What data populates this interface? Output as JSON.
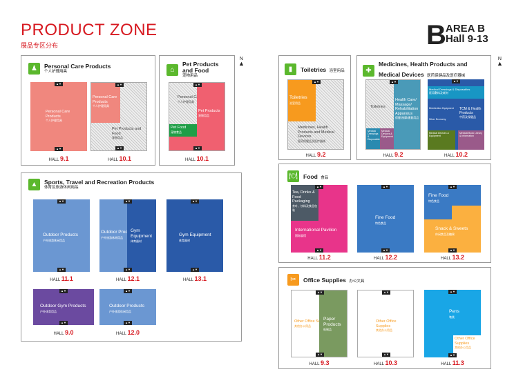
{
  "header": {
    "title": "PRODUCT ZONE",
    "subtitle": "展品专区分布",
    "area_letter": "B",
    "area_name": "AREA B",
    "area_halls": "Hall 9-13",
    "north": "N"
  },
  "colors": {
    "accent": "#d71920",
    "green": "#5bb82d",
    "blue": "#2b5aa6",
    "pink": "#ec3e8f",
    "orange": "#f79a1e"
  },
  "panels": {
    "personal": {
      "icon": "person-icon",
      "en": "Personal Care Products",
      "zh": "个人护理用具"
    },
    "pet": {
      "icon": "pet-house-icon",
      "en1": "Pet Products",
      "en2": "and Food",
      "zh": "宠物用品"
    },
    "toiletries": {
      "icon": "toilet-icon",
      "en": "Toiletries",
      "zh": "浴室用品"
    },
    "medicines": {
      "icon": "medicine-icon",
      "en1": "Medicines, Health Products and",
      "en2": "Medical Devices",
      "zh": "医药保健品及医疗器械"
    },
    "sports": {
      "icon": "tent-icon",
      "en": "Sports, Travel and Recreation Products",
      "zh": "体育及旅游休闲用品"
    },
    "food": {
      "icon": "food-icon",
      "en": "Food",
      "zh": "食品"
    },
    "office": {
      "icon": "scissors-icon",
      "en": "Office Supplies",
      "zh": "办公文具"
    }
  },
  "halls": {
    "h91": {
      "label": "HALL",
      "num": "9.1",
      "seg1": "Personal Care Products",
      "seg1_zh": "个人护理用具"
    },
    "h101a": {
      "label": "HALL",
      "num": "10.1",
      "seg1": "Personal Care Products",
      "seg1_zh": "个人护理用具",
      "seg2": "Pet Products and Food",
      "seg2_zh": "宠物用品"
    },
    "h101b": {
      "label": "HALL",
      "num": "10.1",
      "seg1": "Personal Care Products",
      "seg1_zh": "个人护理用具",
      "seg2": "Pet Food",
      "seg2_zh": "宠物食品",
      "seg3": "Pet Products",
      "seg3_zh": "宠物用品"
    },
    "h92": {
      "label": "HALL",
      "num": "9.2",
      "seg1": "Toiletries",
      "seg1_zh": "浴室用品",
      "seg2": "Medicines, Health Products and Medical Devices",
      "seg2_zh": "医药保健品及医疗器械"
    },
    "h92b": {
      "label": "HALL",
      "num": "9.2",
      "seg1": "Toiletries",
      "seg1_zh": "浴室用品",
      "seg2": "Health Care/ Massage/ Rehabilitation Apparatus",
      "seg2_zh": "保健/按摩/康复用品",
      "seg3": "Medical Dressings & Disposables",
      "seg4": "Medical Devices & Equipment"
    },
    "h102": {
      "label": "HALL",
      "num": "10.2",
      "seg1": "Medical Dressings & Disposables",
      "seg1_zh": "医用敷料及耗材",
      "seg2": "Disinfection Equipment",
      "seg3": "Silver Economy",
      "seg4": "TCM & Health Products",
      "seg4_zh": "中药及保健品",
      "seg5": "Medical Devices & Equipment",
      "seg6": "Medical Book Library & Information"
    },
    "h111": {
      "label": "HALL",
      "num": "11.1",
      "seg1": "Outdoor Products",
      "seg1_zh": "户外旅游休闲用品"
    },
    "h121": {
      "label": "HALL",
      "num": "12.1",
      "seg1": "Outdoor Products",
      "seg1_zh": "户外旅游休闲用品",
      "seg2": "Gym Equipment",
      "seg2_zh": "体育器材"
    },
    "h131": {
      "label": "HALL",
      "num": "13.1",
      "seg1": "Gym Equipment",
      "seg1_zh": "体育器材"
    },
    "h90": {
      "label": "HALL",
      "num": "9.0",
      "seg1": "Outdoor Gym Products",
      "seg1_zh": "户外体育用品"
    },
    "h120": {
      "label": "HALL",
      "num": "12.0",
      "seg1": "Outdoor Products",
      "seg1_zh": "户外旅游休闲用品"
    },
    "h112": {
      "label": "HALL",
      "num": "11.2",
      "seg1": "Tea, Drinks & Food Packaging",
      "seg1_zh": "茶叶、饮料及食品包装",
      "seg2": "International Pavilion",
      "seg2_zh": "国际展馆"
    },
    "h122": {
      "label": "HALL",
      "num": "12.2",
      "seg1": "Fine Food",
      "seg1_zh": "特色食品"
    },
    "h132": {
      "label": "HALL",
      "num": "13.2",
      "seg1": "Fine Food",
      "seg1_zh": "特色食品",
      "seg2": "Snack & Sweets",
      "seg2_zh": "休闲食品及糖果"
    },
    "h93": {
      "label": "HALL",
      "num": "9.3",
      "seg1": "Other Office Supplies",
      "seg1_zh": "其他办公用品",
      "seg2": "Paper Products",
      "seg2_zh": "纸制品"
    },
    "h103": {
      "label": "HALL",
      "num": "10.3",
      "seg1": "Other Office Supplies",
      "seg1_zh": "其他办公用品"
    },
    "h113": {
      "label": "HALL",
      "num": "11.3",
      "seg1": "Pens",
      "seg1_zh": "笔类",
      "seg2": "Other Office Supplies",
      "seg2_zh": "其他办公用品"
    }
  }
}
